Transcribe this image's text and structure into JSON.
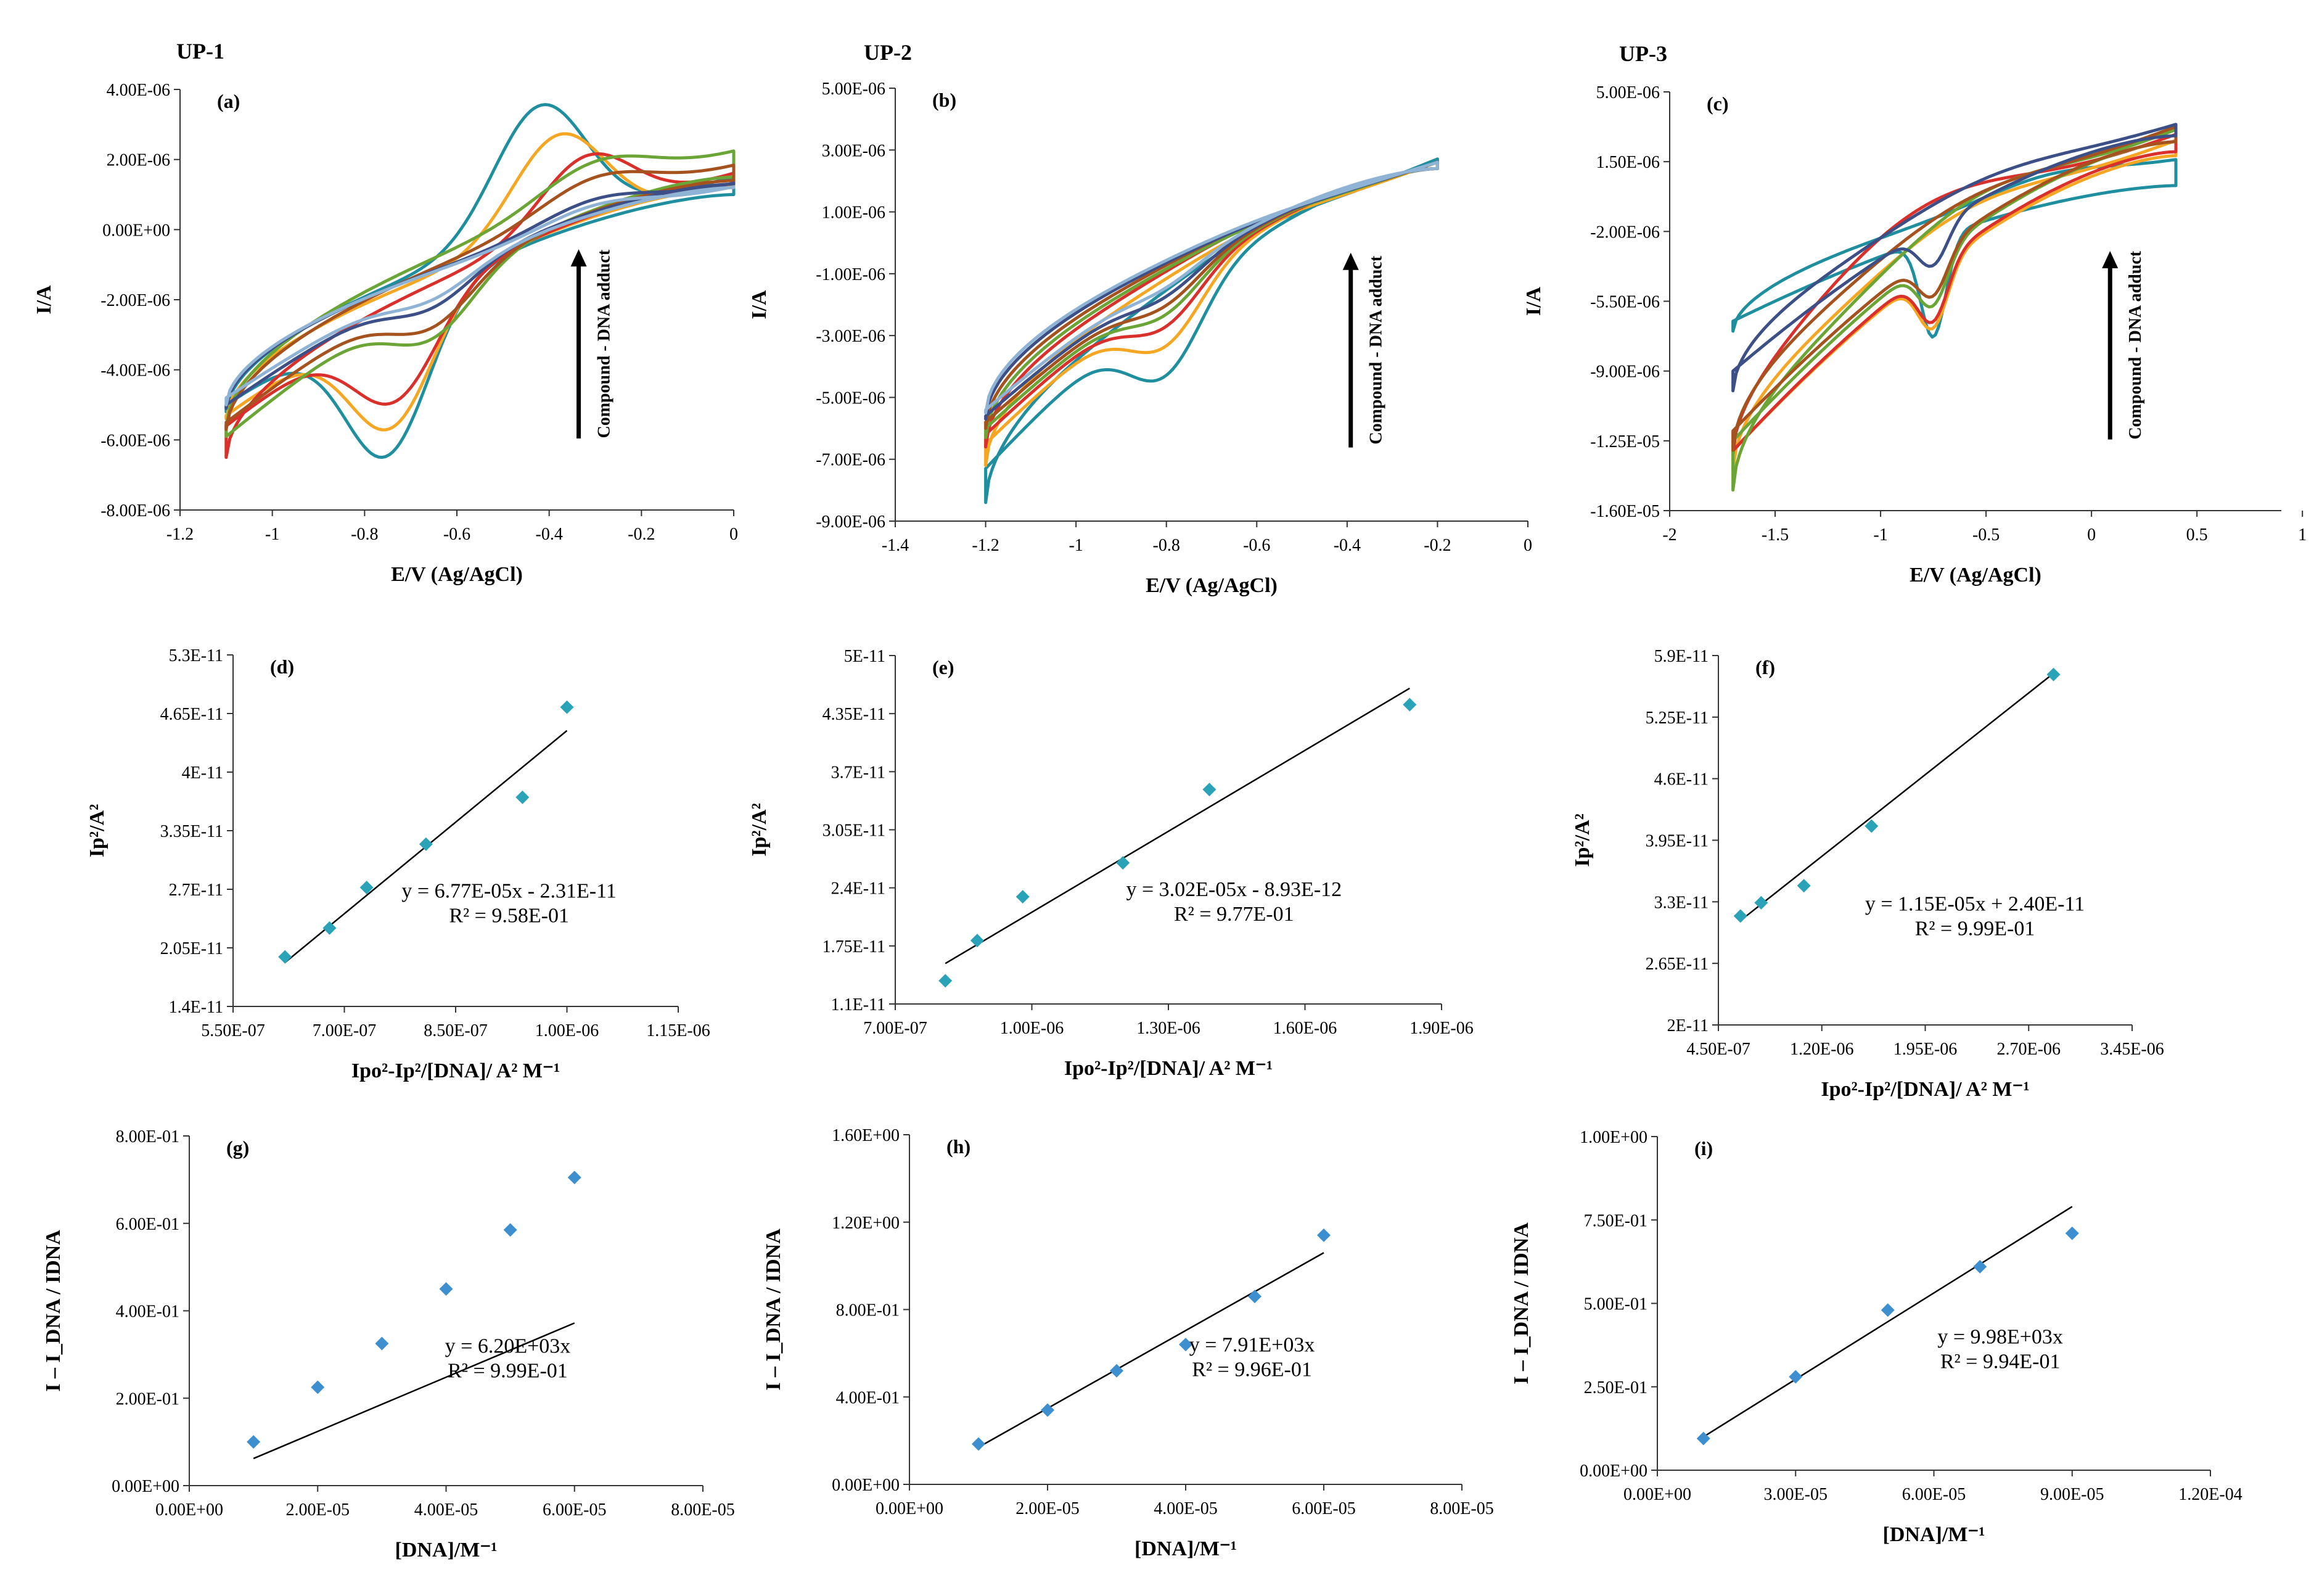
{
  "figure": {
    "titles": [
      "UP-1",
      "UP-2",
      "UP-3"
    ]
  },
  "colors": {
    "teal": "#1f8fa0",
    "orange": "#f5a623",
    "red": "#d9302b",
    "green": "#6aa535",
    "brown": "#a5521e",
    "navy": "#3c4f86",
    "lightblue": "#8fb3d4",
    "marker": "#2aa3b8",
    "marker2": "#3d8fcf",
    "line": "#000000"
  },
  "chart_data": [
    {
      "id": "a",
      "type": "line",
      "panel_label": "(a)",
      "title": "UP-1",
      "xlabel": "E/V (Ag/AgCl)",
      "ylabel": "I/A",
      "xlim": [
        -1.2,
        0
      ],
      "ylim": [
        -8e-06,
        4e-06
      ],
      "xticks": [
        -1.2,
        -1,
        -0.8,
        -0.6,
        -0.4,
        -0.2,
        0
      ],
      "xtick_labels": [
        "-1.2",
        "-1",
        "-0.8",
        "-0.6",
        "-0.4",
        "-0.2",
        "0"
      ],
      "yticks": [
        4e-06,
        2e-06,
        0,
        -2e-06,
        -4e-06,
        -6e-06,
        -8e-06
      ],
      "ytick_labels": [
        "4.00E-06",
        "2.00E-06",
        "0.00E+00",
        "-2.00E-06",
        "-4.00E-06",
        "-6.00E-06",
        "-8.00E-06"
      ],
      "annotation": "Compound - DNA adduct",
      "cv": {
        "xstart": 0,
        "xend": -1.1,
        "series": [
          {
            "color": "teal",
            "ostart": 1e-06,
            "oend": -5e-06,
            "opx": -0.75,
            "oph": -4.2e-06,
            "ow": 0.09,
            "rstart": 1.5e-06,
            "rend": -5.2e-06,
            "rpx": -0.42,
            "rph": 3.6e-06,
            "rw": 0.1
          },
          {
            "color": "orange",
            "ostart": 1.2e-06,
            "oend": -5.3e-06,
            "opx": -0.74,
            "oph": -3.4e-06,
            "ow": 0.09,
            "rstart": 1.3e-06,
            "rend": -5.4e-06,
            "rpx": -0.38,
            "rph": 2.8e-06,
            "rw": 0.1
          },
          {
            "color": "red",
            "ostart": 1.3e-06,
            "oend": -5.6e-06,
            "opx": -0.73,
            "oph": -2.6e-06,
            "ow": 0.09,
            "rstart": 1.6e-06,
            "rend": -6.5e-06,
            "rpx": -0.32,
            "rph": 1.9e-06,
            "rw": 0.1
          },
          {
            "color": "green",
            "ostart": 1.5e-06,
            "oend": -5.9e-06,
            "opx": -0.65,
            "oph": -1.4e-06,
            "ow": 0.09,
            "rstart": 2.2e-06,
            "rend": -5.6e-06,
            "rpx": -0.3,
            "rph": 1e-06,
            "rw": 0.12
          },
          {
            "color": "brown",
            "ostart": 1.4e-06,
            "oend": -5.5e-06,
            "opx": -0.65,
            "oph": -1.2e-06,
            "ow": 0.09,
            "rstart": 1.8e-06,
            "rend": -5.7e-06,
            "rpx": -0.3,
            "rph": 9e-07,
            "rw": 0.12
          },
          {
            "color": "navy",
            "ostart": 1.3e-06,
            "oend": -5e-06,
            "opx": -0.65,
            "oph": -8e-07,
            "ow": 0.09,
            "rstart": 1.3e-06,
            "rend": -5.1e-06,
            "rpx": -0.3,
            "rph": 6e-07,
            "rw": 0.12
          },
          {
            "color": "lightblue",
            "ostart": 1.2e-06,
            "oend": -4.8e-06,
            "opx": -0.65,
            "oph": -6e-07,
            "ow": 0.09,
            "rstart": 1.2e-06,
            "rend": -5e-06,
            "rpx": -0.3,
            "rph": 5e-07,
            "rw": 0.12
          }
        ]
      }
    },
    {
      "id": "b",
      "type": "line",
      "panel_label": "(b)",
      "title": "UP-2",
      "xlabel": "E/V (Ag/AgCl)",
      "ylabel": "I/A",
      "xlim": [
        -1.4,
        0
      ],
      "ylim": [
        -9e-06,
        5e-06
      ],
      "xticks": [
        -1.4,
        -1.2,
        -1,
        -0.8,
        -0.6,
        -0.4,
        -0.2,
        0
      ],
      "xtick_labels": [
        "-1.4",
        "-1.2",
        "-1",
        "-0.8",
        "-0.6",
        "-0.4",
        "-0.2",
        "0"
      ],
      "yticks": [
        5e-06,
        3e-06,
        1e-06,
        -1e-06,
        -3e-06,
        -5e-06,
        -7e-06,
        -9e-06
      ],
      "ytick_labels": [
        "5.00E-06",
        "3.00E-06",
        "1.00E-06",
        "-1.00E-06",
        "-3.00E-06",
        "-5.00E-06",
        "-7.00E-06",
        "-9.00E-06"
      ],
      "annotation": "Compound - DNA adduct",
      "cv": {
        "xstart": -0.2,
        "xend": -1.2,
        "series": [
          {
            "color": "teal",
            "ostart": 2.4e-06,
            "oend": -7.3e-06,
            "opx": -0.8,
            "oph": -2.4e-06,
            "ow": 0.08,
            "rstart": 2.7e-06,
            "rend": -8.4e-06,
            "rpx": -0.6,
            "rph": 4e-07,
            "rw": 0.15
          },
          {
            "color": "orange",
            "ostart": 2.4e-06,
            "oend": -6.5e-06,
            "opx": -0.8,
            "oph": -1.8e-06,
            "ow": 0.08,
            "rstart": 2.6e-06,
            "rend": -7.2e-06,
            "rpx": -0.6,
            "rph": 3e-07,
            "rw": 0.15
          },
          {
            "color": "red",
            "ostart": 2.4e-06,
            "oend": -6.2e-06,
            "opx": -0.8,
            "oph": -1.3e-06,
            "ow": 0.08,
            "rstart": 2.6e-06,
            "rend": -6.6e-06,
            "rpx": -0.6,
            "rph": 3e-07,
            "rw": 0.15
          },
          {
            "color": "green",
            "ostart": 2.4e-06,
            "oend": -6e-06,
            "opx": -0.8,
            "oph": -1e-06,
            "ow": 0.08,
            "rstart": 2.6e-06,
            "rend": -6.3e-06,
            "rpx": -0.6,
            "rph": 2e-07,
            "rw": 0.15
          },
          {
            "color": "brown",
            "ostart": 2.4e-06,
            "oend": -5.8e-06,
            "opx": -0.8,
            "oph": -8e-07,
            "ow": 0.08,
            "rstart": 2.6e-06,
            "rend": -6e-06,
            "rpx": -0.6,
            "rph": 2e-07,
            "rw": 0.15
          },
          {
            "color": "navy",
            "ostart": 2.4e-06,
            "oend": -5.6e-06,
            "opx": -0.8,
            "oph": -6e-07,
            "ow": 0.08,
            "rstart": 2.6e-06,
            "rend": -5.7e-06,
            "rpx": -0.6,
            "rph": 1e-07,
            "rw": 0.15
          },
          {
            "color": "lightblue",
            "ostart": 2.4e-06,
            "oend": -5.4e-06,
            "opx": -0.8,
            "oph": -4e-07,
            "ow": 0.08,
            "rstart": 2.6e-06,
            "rend": -5.5e-06,
            "rpx": -0.6,
            "rph": 1e-07,
            "rw": 0.15
          }
        ]
      }
    },
    {
      "id": "c",
      "type": "line",
      "panel_label": "(c)",
      "title": "UP-3",
      "xlabel": "E/V (Ag/AgCl)",
      "ylabel": "I/A",
      "xlim": [
        -2,
        0.9
      ],
      "ylim": [
        -1.6e-05,
        5e-06
      ],
      "xticks": [
        -2,
        -1.5,
        -1,
        -0.5,
        0,
        0.5,
        1
      ],
      "xtick_labels": [
        "-2",
        "-1.5",
        "-1",
        "-0.5",
        "0",
        "0.5",
        "1"
      ],
      "yticks": [
        5e-06,
        1.5e-06,
        -2e-06,
        -5.5e-06,
        -9e-06,
        -1.25e-05,
        -1.6e-05
      ],
      "ytick_labels": [
        "5.00E-06",
        "1.50E-06",
        "-2.00E-06",
        "-5.50E-06",
        "-9.00E-06",
        "-1.25E-05",
        "-1.60E-05"
      ],
      "annotation": "Compound - DNA adduct",
      "cv": {
        "xstart": 0.4,
        "xend": -1.7,
        "series": [
          {
            "color": "teal",
            "ostart": 3e-07,
            "oend": -6.5e-06,
            "opx": -0.75,
            "oph": -5e-06,
            "ow": 0.06,
            "rstart": 1.5e-06,
            "rend": -7e-06,
            "rpx": -0.2,
            "rph": 8e-07,
            "rw": 0.3
          },
          {
            "color": "orange",
            "ostart": 1.8e-06,
            "oend": -1.3e-05,
            "opx": -0.75,
            "oph": -3e-06,
            "ow": 0.07,
            "rstart": 2.5e-06,
            "rend": -1.4e-05,
            "rpx": -0.6,
            "rph": 1.5e-06,
            "rw": 0.4
          },
          {
            "color": "red",
            "ostart": 2e-06,
            "oend": -1.3e-05,
            "opx": -0.75,
            "oph": -2.8e-06,
            "ow": 0.07,
            "rstart": 2.8e-06,
            "rend": -1.35e-05,
            "rpx": -0.8,
            "rph": 2.5e-06,
            "rw": 0.45
          },
          {
            "color": "green",
            "ostart": 2.5e-06,
            "oend": -1.25e-05,
            "opx": -0.75,
            "oph": -2.5e-06,
            "ow": 0.07,
            "rstart": 3e-06,
            "rend": -1.5e-05,
            "rpx": -0.55,
            "rph": 1.8e-06,
            "rw": 0.4
          },
          {
            "color": "brown",
            "ostart": 2.5e-06,
            "oend": -1.2e-05,
            "opx": -0.75,
            "oph": -2.2e-06,
            "ow": 0.07,
            "rstart": 3.2e-06,
            "rend": -1.3e-05,
            "rpx": -0.6,
            "rph": 1.2e-06,
            "rw": 0.4
          },
          {
            "color": "navy",
            "ostart": 2.8e-06,
            "oend": -9e-06,
            "opx": -0.75,
            "oph": -2e-06,
            "ow": 0.07,
            "rstart": 3.3e-06,
            "rend": -1e-05,
            "rpx": -0.5,
            "rph": 9e-07,
            "rw": 0.4
          }
        ]
      }
    },
    {
      "id": "d",
      "type": "scatter",
      "panel_label": "(d)",
      "xlabel": "Ipo²-Ip²/[DNA]/ A² M⁻¹",
      "ylabel": "Ip²/A²",
      "xlim": [
        5.5e-07,
        1.15e-06
      ],
      "ylim": [
        1.4e-11,
        5.3e-11
      ],
      "xticks": [
        5.5e-07,
        7e-07,
        8.5e-07,
        1e-06,
        1.15e-06
      ],
      "xtick_labels": [
        "5.50E-07",
        "7.00E-07",
        "8.50E-07",
        "1.00E-06",
        "1.15E-06"
      ],
      "yticks": [
        5.3e-11,
        4.65e-11,
        4e-11,
        3.35e-11,
        2.7e-11,
        2.05e-11,
        1.4e-11
      ],
      "ytick_labels": [
        "5.3E-11",
        "4.65E-11",
        "4E-11",
        "3.35E-11",
        "2.7E-11",
        "2.05E-11",
        "1.4E-11"
      ],
      "x": [
        6.2e-07,
        6.8e-07,
        7.3e-07,
        8.1e-07,
        9.4e-07,
        1e-06
      ],
      "y": [
        1.95e-11,
        2.27e-11,
        2.72e-11,
        3.2e-11,
        3.72e-11,
        4.72e-11
      ],
      "fit_slope": 6.77e-05,
      "fit_intercept": -2.31e-11,
      "fit_x": [
        6.2e-07,
        1e-06
      ],
      "equation": "y = 6.77E-05x - 2.31E-11",
      "r2": "R² = 9.58E-01"
    },
    {
      "id": "e",
      "type": "scatter",
      "panel_label": "(e)",
      "xlabel": "Ipo²-Ip²/[DNA]/ A² M⁻¹",
      "ylabel": "Ip²/A²",
      "xlim": [
        7e-07,
        1.9e-06
      ],
      "ylim": [
        1.1e-11,
        5e-11
      ],
      "xticks": [
        7e-07,
        1e-06,
        1.3e-06,
        1.6e-06,
        1.9e-06
      ],
      "xtick_labels": [
        "7.00E-07",
        "1.00E-06",
        "1.30E-06",
        "1.60E-06",
        "1.90E-06"
      ],
      "yticks": [
        5e-11,
        4.35e-11,
        3.7e-11,
        3.05e-11,
        2.4e-11,
        1.75e-11,
        1.1e-11
      ],
      "ytick_labels": [
        "5E-11",
        "4.35E-11",
        "3.7E-11",
        "3.05E-11",
        "2.4E-11",
        "1.75E-11",
        "1.1E-11"
      ],
      "x": [
        8.1e-07,
        8.8e-07,
        9.8e-07,
        1.2e-06,
        1.39e-06,
        1.83e-06
      ],
      "y": [
        1.36e-11,
        1.81e-11,
        2.3e-11,
        2.68e-11,
        3.5e-11,
        4.45e-11
      ],
      "fit_slope": 3.02e-05,
      "fit_intercept": -8.93e-12,
      "fit_x": [
        8.1e-07,
        1.83e-06
      ],
      "equation": "y = 3.02E-05x - 8.93E-12",
      "r2": "R² = 9.77E-01"
    },
    {
      "id": "f",
      "type": "scatter",
      "panel_label": "(f)",
      "xlabel": "Ipo²-Ip²/[DNA]/ A² M⁻¹",
      "ylabel": "Ip²/A²",
      "xlim": [
        4.5e-07,
        3.45e-06
      ],
      "ylim": [
        2e-11,
        5.9e-11
      ],
      "xticks": [
        4.5e-07,
        1.2e-06,
        1.95e-06,
        2.7e-06,
        3.45e-06
      ],
      "xtick_labels": [
        "4.50E-07",
        "1.20E-06",
        "1.95E-06",
        "2.70E-06",
        "3.45E-06"
      ],
      "yticks": [
        5.9e-11,
        5.25e-11,
        4.6e-11,
        3.95e-11,
        3.3e-11,
        2.65e-11,
        2e-11
      ],
      "ytick_labels": [
        "5.9E-11",
        "5.25E-11",
        "4.6E-11",
        "3.95E-11",
        "3.3E-11",
        "2.65E-11",
        "2E-11"
      ],
      "x": [
        6.1e-07,
        7.6e-07,
        1.07e-06,
        1.56e-06,
        2.88e-06
      ],
      "y": [
        3.15e-11,
        3.29e-11,
        3.47e-11,
        4.1e-11,
        5.7e-11
      ],
      "fit_slope": 1.15e-05,
      "fit_intercept": 2.4e-11,
      "fit_x": [
        6.1e-07,
        2.88e-06
      ],
      "equation": "y = 1.15E-05x + 2.40E-11",
      "r2": "R² = 9.99E-01"
    },
    {
      "id": "g",
      "type": "scatter",
      "panel_label": "(g)",
      "xlabel": "[DNA]/M⁻¹",
      "ylabel": "I – I_DNA / IDNA",
      "xlim": [
        0,
        8e-05
      ],
      "ylim": [
        0,
        0.8
      ],
      "xticks": [
        0,
        2e-05,
        4e-05,
        6e-05,
        8e-05
      ],
      "xtick_labels": [
        "0.00E+00",
        "2.00E-05",
        "4.00E-05",
        "6.00E-05",
        "8.00E-05"
      ],
      "yticks": [
        0.8,
        0.6,
        0.4,
        0.2,
        0
      ],
      "ytick_labels": [
        "8.00E-01",
        "6.00E-01",
        "4.00E-01",
        "2.00E-01",
        "0.00E+00"
      ],
      "x": [
        1e-05,
        2e-05,
        3e-05,
        4e-05,
        5e-05,
        6e-05
      ],
      "y": [
        0.1,
        0.225,
        0.325,
        0.45,
        0.585,
        0.705
      ],
      "fit_slope": 6200,
      "fit_intercept": 0,
      "fit_x": [
        1e-05,
        6e-05
      ],
      "equation": "y = 6.20E+03x",
      "r2": "R² = 9.99E-01"
    },
    {
      "id": "h",
      "type": "scatter",
      "panel_label": "(h)",
      "xlabel": "[DNA]/M⁻¹",
      "ylabel": "I – I_DNA / IDNA",
      "xlim": [
        0,
        8e-05
      ],
      "ylim": [
        0,
        1.6
      ],
      "xticks": [
        0,
        2e-05,
        4e-05,
        6e-05,
        8e-05
      ],
      "xtick_labels": [
        "0.00E+00",
        "2.00E-05",
        "4.00E-05",
        "6.00E-05",
        "8.00E-05"
      ],
      "yticks": [
        1.6,
        1.2,
        0.8,
        0.4,
        0
      ],
      "ytick_labels": [
        "1.60E+00",
        "1.20E+00",
        "8.00E-01",
        "4.00E-01",
        "0.00E+00"
      ],
      "x": [
        1e-05,
        2e-05,
        3e-05,
        4e-05,
        5e-05,
        6e-05
      ],
      "y": [
        0.185,
        0.34,
        0.52,
        0.64,
        0.86,
        1.14
      ],
      "fit_slope": 7910,
      "fit_intercept": 0,
      "fit_x": [
        1e-05,
        6e-05
      ],
      "fit_y_override": [
        0.17,
        1.06
      ],
      "equation": "y = 7.91E+03x",
      "r2": "R² = 9.96E-01"
    },
    {
      "id": "i",
      "type": "scatter",
      "panel_label": "(i)",
      "xlabel": "[DNA]/M⁻¹",
      "ylabel": "I – I_DNA / IDNA",
      "xlim": [
        0,
        0.00012
      ],
      "ylim": [
        0,
        1.0
      ],
      "xticks": [
        0,
        3e-05,
        6e-05,
        9e-05,
        0.00012
      ],
      "xtick_labels": [
        "0.00E+00",
        "3.00E-05",
        "6.00E-05",
        "9.00E-05",
        "1.20E-04"
      ],
      "yticks": [
        1.0,
        0.75,
        0.5,
        0.25,
        0
      ],
      "ytick_labels": [
        "1.00E+00",
        "7.50E-01",
        "5.00E-01",
        "2.50E-01",
        "0.00E+00"
      ],
      "x": [
        1e-05,
        3e-05,
        5e-05,
        7e-05,
        9e-05
      ],
      "y": [
        0.095,
        0.28,
        0.48,
        0.61,
        0.71
      ],
      "fit_slope": 9980,
      "fit_intercept": 0,
      "fit_x": [
        1e-05,
        9e-05
      ],
      "fit_y_override": [
        0.1,
        0.79
      ],
      "equation": "y = 9.98E+03x",
      "r2": "R² = 9.94E-01"
    }
  ]
}
